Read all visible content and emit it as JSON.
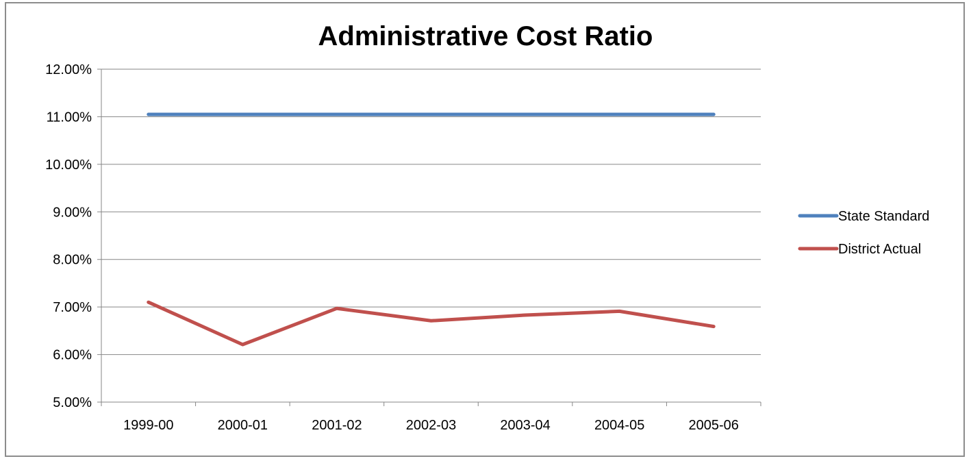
{
  "chart_data": {
    "type": "line",
    "title": "Administrative Cost Ratio",
    "xlabel": "",
    "ylabel": "",
    "categories": [
      "1999-00",
      "2000-01",
      "2001-02",
      "2002-03",
      "2003-04",
      "2004-05",
      "2005-06"
    ],
    "ylim": [
      0.05,
      0.12
    ],
    "yticks": [
      0.05,
      0.06,
      0.07,
      0.08,
      0.09,
      0.1,
      0.11,
      0.12
    ],
    "ytick_labels": [
      "5.00%",
      "6.00%",
      "7.00%",
      "8.00%",
      "9.00%",
      "10.00%",
      "11.00%",
      "12.00%"
    ],
    "grid": true,
    "legend_position": "right",
    "series": [
      {
        "name": "State Standard",
        "color": "#4f81bd",
        "values": [
          0.1105,
          0.1105,
          0.1105,
          0.1105,
          0.1105,
          0.1105,
          0.1105
        ]
      },
      {
        "name": "District Actual",
        "color": "#c0504d",
        "values": [
          0.071,
          0.0621,
          0.0697,
          0.0671,
          0.0683,
          0.0691,
          0.0659
        ]
      }
    ]
  }
}
